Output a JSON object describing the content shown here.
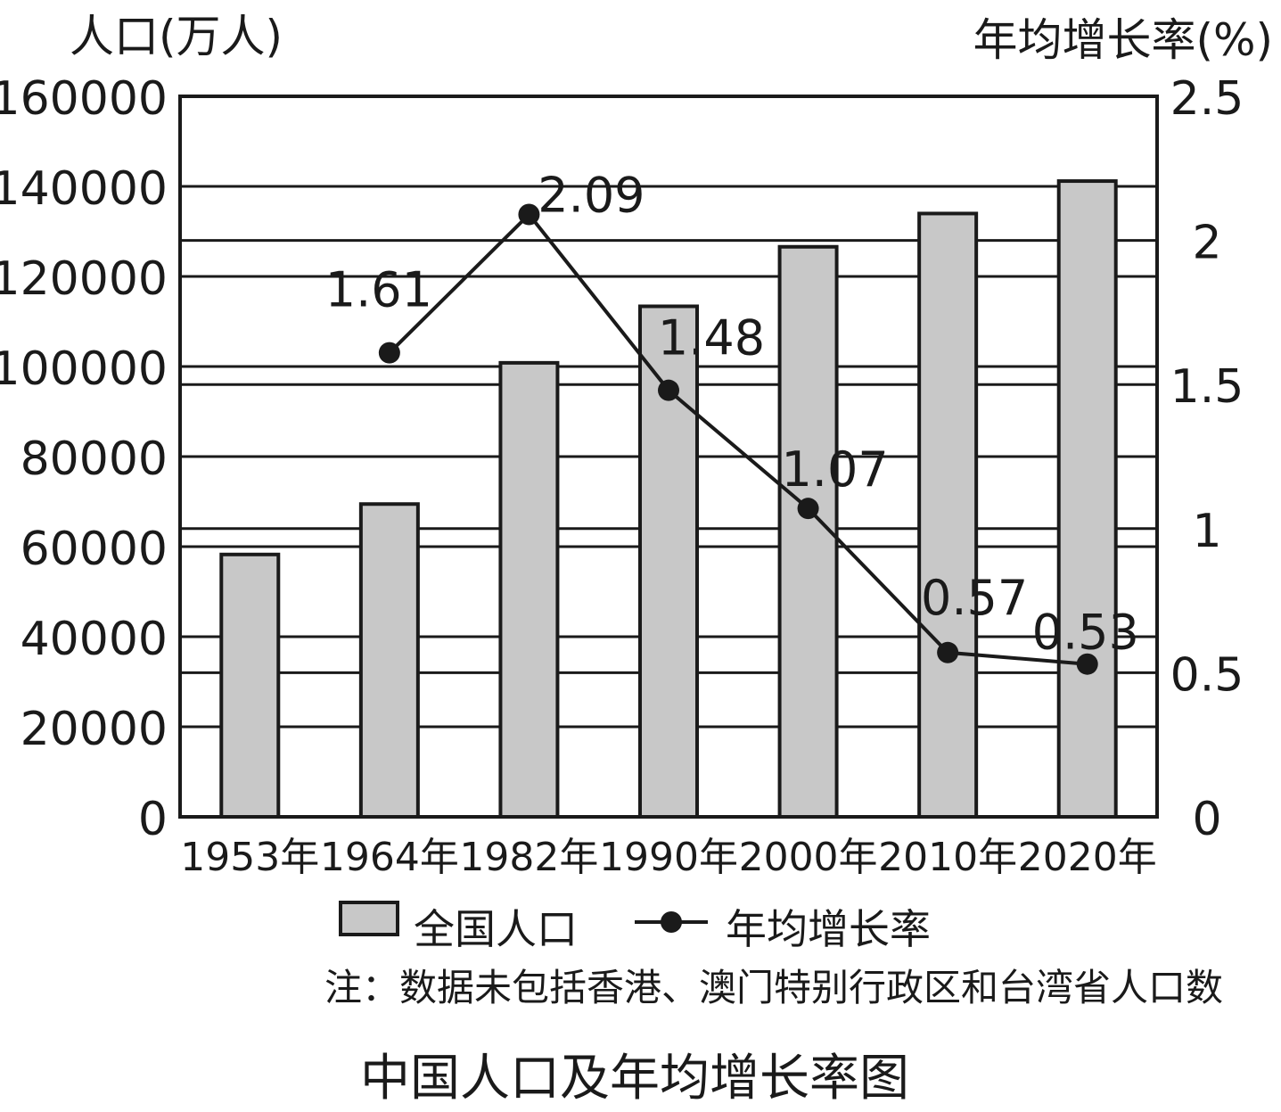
{
  "chart_data": {
    "type": "bar+line",
    "title": "中国人口及年均增长率图",
    "note": "注：数据未包括香港、澳门特别行政区和台湾省人口数",
    "categories": [
      "1953年",
      "1964年",
      "1982年",
      "1990年",
      "2000年",
      "2010年",
      "2020年"
    ],
    "y_left": {
      "label": "人口(万人)",
      "ylim": [
        0,
        160000
      ],
      "ticks": [
        "0",
        "20000",
        "40000",
        "60000",
        "80000",
        "100000",
        "120000",
        "140000",
        "160000"
      ],
      "tick_values": [
        0,
        20000,
        40000,
        60000,
        80000,
        100000,
        120000,
        140000,
        160000
      ]
    },
    "y_right": {
      "label": "年均增长率(%)",
      "ylim": [
        0,
        2.5
      ],
      "ticks": [
        "0",
        "0.5",
        "1",
        "1.5",
        "2",
        "2.5"
      ],
      "tick_values": [
        0,
        0.5,
        1,
        1.5,
        2,
        2.5
      ]
    },
    "grid": true,
    "legend_position": "bottom",
    "series": [
      {
        "name": "全国人口",
        "kind": "bar",
        "axis": "left",
        "color": "#c8c8c8",
        "values": [
          58260,
          69458,
          100818,
          113368,
          126583,
          133972,
          141178
        ]
      },
      {
        "name": "年均增长率",
        "kind": "line",
        "axis": "right",
        "color": "#1a1a1a",
        "values": [
          null,
          1.61,
          2.09,
          1.48,
          1.07,
          0.57,
          0.53
        ],
        "labels": [
          "",
          "1.61",
          "2.09",
          "1.48",
          "1.07",
          "0.57",
          "0.53"
        ]
      }
    ]
  }
}
